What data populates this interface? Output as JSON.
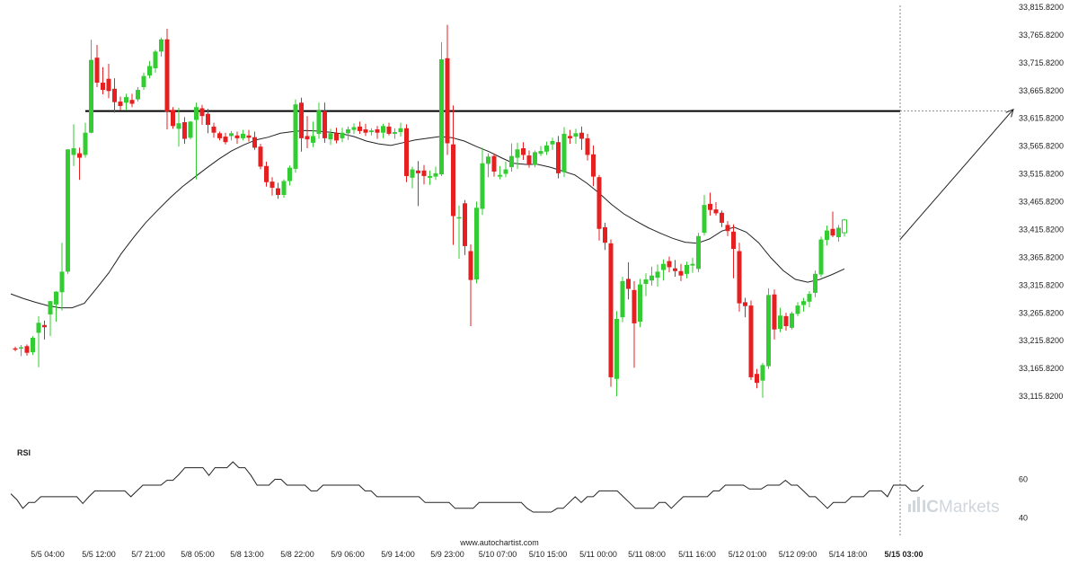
{
  "chart_data": [
    {
      "type": "candlestick",
      "title": "",
      "ylim": [
        33065.82,
        33815.82
      ],
      "y_ticks": [
        "33,815.8200",
        "33,765.8200",
        "33,715.8200",
        "33,665.8200",
        "33,615.8200",
        "33,565.8200",
        "33,515.8200",
        "33,465.8200",
        "33,415.8200",
        "33,365.8200",
        "33,315.8200",
        "33,265.8200",
        "33,215.8200",
        "33,165.8200",
        "33,115.8200"
      ],
      "x_ticks": [
        "5/5 04:00",
        "5/5 12:00",
        "5/7 21:00",
        "5/8 05:00",
        "5/8 13:00",
        "5/8 22:00",
        "5/9 06:00",
        "5/9 14:00",
        "5/9 23:00",
        "5/10 07:00",
        "5/10 15:00",
        "5/11 00:00",
        "5/11 08:00",
        "5/11 16:00",
        "5/12 01:00",
        "5/12 09:00",
        "5/14 18:00",
        "5/15 03:00"
      ],
      "highlighted_x_tick": "5/15 03:00",
      "colors": {
        "up": "#33cc33",
        "down": "#e62020",
        "moving_average": "#222222",
        "resistance": "#000000",
        "projection": "#222222"
      },
      "resistance_level": 33629,
      "moving_average": [
        33300,
        33292,
        33285,
        33279,
        33275,
        33275,
        33283,
        33310,
        33338,
        33372,
        33401,
        33428,
        33451,
        33473,
        33493,
        33510,
        33527,
        33543,
        33557,
        33568,
        33577,
        33582,
        33589,
        33592,
        33594,
        33593,
        33591,
        33588,
        33583,
        33575,
        33570,
        33567,
        33572,
        33577,
        33580,
        33583,
        33581,
        33575,
        33565,
        33556,
        33545,
        33535,
        33533,
        33533,
        33528,
        33521,
        33514,
        33499,
        33481,
        33461,
        33444,
        33431,
        33419,
        33409,
        33400,
        33393,
        33391,
        33399,
        33413,
        33420,
        33411,
        33392,
        33365,
        33342,
        33326,
        33321,
        33326,
        33335,
        33345
      ],
      "candles": [
        {
          "o": 33202,
          "h": 33205,
          "l": 33197,
          "c": 33200
        },
        {
          "o": 33203,
          "h": 33208,
          "l": 33188,
          "c": 33204
        },
        {
          "o": 33206,
          "h": 33209,
          "l": 33189,
          "c": 33194
        },
        {
          "o": 33195,
          "h": 33224,
          "l": 33190,
          "c": 33221
        },
        {
          "o": 33230,
          "h": 33260,
          "l": 33168,
          "c": 33248
        },
        {
          "o": 33244,
          "h": 33252,
          "l": 33218,
          "c": 33240
        },
        {
          "o": 33263,
          "h": 33287,
          "l": 33224,
          "c": 33287
        },
        {
          "o": 33281,
          "h": 33305,
          "l": 33250,
          "c": 33304
        },
        {
          "o": 33303,
          "h": 33392,
          "l": 33270,
          "c": 33340
        },
        {
          "o": 33340,
          "h": 33560,
          "l": 33336,
          "c": 33560
        },
        {
          "o": 33550,
          "h": 33605,
          "l": 33530,
          "c": 33562
        },
        {
          "o": 33553,
          "h": 33563,
          "l": 33505,
          "c": 33545
        },
        {
          "o": 33550,
          "h": 33608,
          "l": 33545,
          "c": 33590
        },
        {
          "o": 33590,
          "h": 33757,
          "l": 33589,
          "c": 33721
        },
        {
          "o": 33725,
          "h": 33748,
          "l": 33672,
          "c": 33680
        },
        {
          "o": 33680,
          "h": 33708,
          "l": 33659,
          "c": 33667
        },
        {
          "o": 33687,
          "h": 33714,
          "l": 33652,
          "c": 33665
        },
        {
          "o": 33669,
          "h": 33688,
          "l": 33626,
          "c": 33645
        },
        {
          "o": 33646,
          "h": 33655,
          "l": 33630,
          "c": 33638
        },
        {
          "o": 33644,
          "h": 33660,
          "l": 33630,
          "c": 33654
        },
        {
          "o": 33649,
          "h": 33660,
          "l": 33636,
          "c": 33642
        },
        {
          "o": 33650,
          "h": 33672,
          "l": 33646,
          "c": 33667
        },
        {
          "o": 33672,
          "h": 33698,
          "l": 33667,
          "c": 33692
        },
        {
          "o": 33693,
          "h": 33719,
          "l": 33688,
          "c": 33710
        },
        {
          "o": 33706,
          "h": 33739,
          "l": 33698,
          "c": 33736
        },
        {
          "o": 33736,
          "h": 33761,
          "l": 33727,
          "c": 33758
        },
        {
          "o": 33758,
          "h": 33777,
          "l": 33596,
          "c": 33628
        },
        {
          "o": 33631,
          "h": 33636,
          "l": 33597,
          "c": 33602
        },
        {
          "o": 33597,
          "h": 33635,
          "l": 33565,
          "c": 33607
        },
        {
          "o": 33609,
          "h": 33618,
          "l": 33570,
          "c": 33579
        },
        {
          "o": 33581,
          "h": 33611,
          "l": 33578,
          "c": 33610
        },
        {
          "o": 33613,
          "h": 33644,
          "l": 33506,
          "c": 33636
        },
        {
          "o": 33634,
          "h": 33640,
          "l": 33604,
          "c": 33620
        },
        {
          "o": 33624,
          "h": 33633,
          "l": 33589,
          "c": 33604
        },
        {
          "o": 33601,
          "h": 33608,
          "l": 33581,
          "c": 33590
        },
        {
          "o": 33589,
          "h": 33592,
          "l": 33576,
          "c": 33580
        },
        {
          "o": 33583,
          "h": 33590,
          "l": 33569,
          "c": 33573
        },
        {
          "o": 33584,
          "h": 33593,
          "l": 33576,
          "c": 33589
        },
        {
          "o": 33585,
          "h": 33592,
          "l": 33570,
          "c": 33580
        },
        {
          "o": 33580,
          "h": 33595,
          "l": 33576,
          "c": 33588
        },
        {
          "o": 33585,
          "h": 33595,
          "l": 33574,
          "c": 33581
        },
        {
          "o": 33582,
          "h": 33592,
          "l": 33559,
          "c": 33563
        },
        {
          "o": 33565,
          "h": 33570,
          "l": 33524,
          "c": 33529
        },
        {
          "o": 33530,
          "h": 33538,
          "l": 33493,
          "c": 33501
        },
        {
          "o": 33502,
          "h": 33510,
          "l": 33477,
          "c": 33491
        },
        {
          "o": 33490,
          "h": 33500,
          "l": 33471,
          "c": 33478
        },
        {
          "o": 33478,
          "h": 33506,
          "l": 33473,
          "c": 33503
        },
        {
          "o": 33503,
          "h": 33531,
          "l": 33495,
          "c": 33527
        },
        {
          "o": 33525,
          "h": 33650,
          "l": 33518,
          "c": 33641
        },
        {
          "o": 33644,
          "h": 33653,
          "l": 33556,
          "c": 33580
        },
        {
          "o": 33584,
          "h": 33620,
          "l": 33562,
          "c": 33578
        },
        {
          "o": 33572,
          "h": 33610,
          "l": 33564,
          "c": 33584
        },
        {
          "o": 33588,
          "h": 33644,
          "l": 33579,
          "c": 33630
        },
        {
          "o": 33629,
          "h": 33644,
          "l": 33572,
          "c": 33580
        },
        {
          "o": 33578,
          "h": 33597,
          "l": 33568,
          "c": 33589
        },
        {
          "o": 33589,
          "h": 33599,
          "l": 33571,
          "c": 33576
        },
        {
          "o": 33580,
          "h": 33599,
          "l": 33573,
          "c": 33590
        },
        {
          "o": 33589,
          "h": 33601,
          "l": 33577,
          "c": 33596
        },
        {
          "o": 33595,
          "h": 33607,
          "l": 33588,
          "c": 33600
        },
        {
          "o": 33601,
          "h": 33610,
          "l": 33588,
          "c": 33593
        },
        {
          "o": 33596,
          "h": 33606,
          "l": 33584,
          "c": 33590
        },
        {
          "o": 33591,
          "h": 33598,
          "l": 33585,
          "c": 33594
        },
        {
          "o": 33596,
          "h": 33602,
          "l": 33579,
          "c": 33590
        },
        {
          "o": 33590,
          "h": 33606,
          "l": 33580,
          "c": 33602
        },
        {
          "o": 33601,
          "h": 33608,
          "l": 33585,
          "c": 33588
        },
        {
          "o": 33588,
          "h": 33598,
          "l": 33579,
          "c": 33591
        },
        {
          "o": 33591,
          "h": 33608,
          "l": 33583,
          "c": 33598
        },
        {
          "o": 33598,
          "h": 33605,
          "l": 33501,
          "c": 33512
        },
        {
          "o": 33509,
          "h": 33529,
          "l": 33490,
          "c": 33524
        },
        {
          "o": 33522,
          "h": 33539,
          "l": 33458,
          "c": 33517
        },
        {
          "o": 33522,
          "h": 33532,
          "l": 33497,
          "c": 33512
        },
        {
          "o": 33509,
          "h": 33522,
          "l": 33496,
          "c": 33512
        },
        {
          "o": 33511,
          "h": 33529,
          "l": 33505,
          "c": 33517
        },
        {
          "o": 33515,
          "h": 33753,
          "l": 33512,
          "c": 33722
        },
        {
          "o": 33724,
          "h": 33784,
          "l": 33550,
          "c": 33571
        },
        {
          "o": 33569,
          "h": 33639,
          "l": 33388,
          "c": 33440
        },
        {
          "o": 33437,
          "h": 33459,
          "l": 33363,
          "c": 33438
        },
        {
          "o": 33463,
          "h": 33469,
          "l": 33370,
          "c": 33386
        },
        {
          "o": 33377,
          "h": 33389,
          "l": 33242,
          "c": 33325
        },
        {
          "o": 33326,
          "h": 33466,
          "l": 33319,
          "c": 33455
        },
        {
          "o": 33453,
          "h": 33563,
          "l": 33442,
          "c": 33535
        },
        {
          "o": 33534,
          "h": 33553,
          "l": 33510,
          "c": 33547
        },
        {
          "o": 33548,
          "h": 33553,
          "l": 33511,
          "c": 33520
        },
        {
          "o": 33511,
          "h": 33530,
          "l": 33506,
          "c": 33514
        },
        {
          "o": 33516,
          "h": 33538,
          "l": 33510,
          "c": 33524
        },
        {
          "o": 33528,
          "h": 33571,
          "l": 33520,
          "c": 33548
        },
        {
          "o": 33545,
          "h": 33572,
          "l": 33525,
          "c": 33560
        },
        {
          "o": 33562,
          "h": 33573,
          "l": 33541,
          "c": 33550
        },
        {
          "o": 33549,
          "h": 33558,
          "l": 33527,
          "c": 33533
        },
        {
          "o": 33532,
          "h": 33558,
          "l": 33528,
          "c": 33555
        },
        {
          "o": 33552,
          "h": 33566,
          "l": 33548,
          "c": 33557
        },
        {
          "o": 33556,
          "h": 33574,
          "l": 33550,
          "c": 33567
        },
        {
          "o": 33569,
          "h": 33581,
          "l": 33559,
          "c": 33575
        },
        {
          "o": 33573,
          "h": 33584,
          "l": 33508,
          "c": 33517
        },
        {
          "o": 33519,
          "h": 33600,
          "l": 33510,
          "c": 33588
        },
        {
          "o": 33584,
          "h": 33595,
          "l": 33570,
          "c": 33580
        },
        {
          "o": 33583,
          "h": 33597,
          "l": 33570,
          "c": 33589
        },
        {
          "o": 33590,
          "h": 33601,
          "l": 33559,
          "c": 33579
        },
        {
          "o": 33580,
          "h": 33588,
          "l": 33540,
          "c": 33550
        },
        {
          "o": 33551,
          "h": 33567,
          "l": 33494,
          "c": 33511
        },
        {
          "o": 33510,
          "h": 33514,
          "l": 33396,
          "c": 33417
        },
        {
          "o": 33420,
          "h": 33428,
          "l": 33379,
          "c": 33392
        },
        {
          "o": 33391,
          "h": 33398,
          "l": 33133,
          "c": 33150
        },
        {
          "o": 33147,
          "h": 33269,
          "l": 33116,
          "c": 33255
        },
        {
          "o": 33258,
          "h": 33331,
          "l": 33249,
          "c": 33323
        },
        {
          "o": 33327,
          "h": 33357,
          "l": 33290,
          "c": 33309
        },
        {
          "o": 33307,
          "h": 33323,
          "l": 33167,
          "c": 33247
        },
        {
          "o": 33250,
          "h": 33327,
          "l": 33240,
          "c": 33317
        },
        {
          "o": 33318,
          "h": 33337,
          "l": 33296,
          "c": 33326
        },
        {
          "o": 33324,
          "h": 33349,
          "l": 33315,
          "c": 33333
        },
        {
          "o": 33329,
          "h": 33353,
          "l": 33313,
          "c": 33340
        },
        {
          "o": 33343,
          "h": 33362,
          "l": 33324,
          "c": 33354
        },
        {
          "o": 33359,
          "h": 33367,
          "l": 33339,
          "c": 33348
        },
        {
          "o": 33346,
          "h": 33361,
          "l": 33331,
          "c": 33341
        },
        {
          "o": 33341,
          "h": 33354,
          "l": 33323,
          "c": 33333
        },
        {
          "o": 33336,
          "h": 33358,
          "l": 33328,
          "c": 33352
        },
        {
          "o": 33351,
          "h": 33365,
          "l": 33338,
          "c": 33354
        },
        {
          "o": 33345,
          "h": 33410,
          "l": 33339,
          "c": 33404
        },
        {
          "o": 33410,
          "h": 33478,
          "l": 33405,
          "c": 33460
        },
        {
          "o": 33462,
          "h": 33482,
          "l": 33441,
          "c": 33451
        },
        {
          "o": 33452,
          "h": 33465,
          "l": 33441,
          "c": 33445
        },
        {
          "o": 33446,
          "h": 33450,
          "l": 33420,
          "c": 33428
        },
        {
          "o": 33424,
          "h": 33431,
          "l": 33404,
          "c": 33413
        },
        {
          "o": 33412,
          "h": 33425,
          "l": 33328,
          "c": 33381
        },
        {
          "o": 33377,
          "h": 33392,
          "l": 33268,
          "c": 33283
        },
        {
          "o": 33285,
          "h": 33293,
          "l": 33258,
          "c": 33278
        },
        {
          "o": 33279,
          "h": 33288,
          "l": 33145,
          "c": 33150
        },
        {
          "o": 33156,
          "h": 33165,
          "l": 33130,
          "c": 33140
        },
        {
          "o": 33144,
          "h": 33176,
          "l": 33113,
          "c": 33172
        },
        {
          "o": 33170,
          "h": 33310,
          "l": 33165,
          "c": 33298
        },
        {
          "o": 33299,
          "h": 33308,
          "l": 33218,
          "c": 33236
        },
        {
          "o": 33237,
          "h": 33275,
          "l": 33231,
          "c": 33261
        },
        {
          "o": 33260,
          "h": 33266,
          "l": 33234,
          "c": 33242
        },
        {
          "o": 33239,
          "h": 33268,
          "l": 33236,
          "c": 33265
        },
        {
          "o": 33264,
          "h": 33285,
          "l": 33260,
          "c": 33279
        },
        {
          "o": 33280,
          "h": 33293,
          "l": 33268,
          "c": 33287
        },
        {
          "o": 33286,
          "h": 33305,
          "l": 33276,
          "c": 33300
        },
        {
          "o": 33302,
          "h": 33342,
          "l": 33294,
          "c": 33336
        },
        {
          "o": 33335,
          "h": 33403,
          "l": 33330,
          "c": 33398
        },
        {
          "o": 33397,
          "h": 33423,
          "l": 33387,
          "c": 33414
        },
        {
          "o": 33417,
          "h": 33448,
          "l": 33402,
          "c": 33405
        },
        {
          "o": 33402,
          "h": 33424,
          "l": 33394,
          "c": 33419
        },
        {
          "o": 33410,
          "h": 33435,
          "l": 33403,
          "c": 33433
        }
      ],
      "projection": {
        "from": 33398,
        "to": 33632
      }
    },
    {
      "type": "line",
      "title": "RSI",
      "ylim": [
        30,
        70
      ],
      "y_ticks": [
        "60",
        "40"
      ],
      "values": [
        52.5,
        49.5,
        45,
        48,
        48,
        51,
        51,
        51,
        51,
        51,
        51,
        51,
        47.5,
        51,
        54,
        54,
        54,
        54,
        54,
        54,
        51,
        54,
        57,
        57,
        57,
        57,
        59.5,
        59.5,
        62.5,
        66,
        66,
        66,
        66,
        62,
        66,
        66,
        66,
        69,
        66,
        66,
        62,
        57,
        57,
        57,
        60,
        60,
        57,
        57,
        57,
        57,
        54,
        54,
        57,
        57,
        57,
        57,
        57,
        57,
        57,
        54,
        54,
        51,
        51,
        51,
        51,
        51,
        51,
        51,
        51,
        48,
        48,
        48,
        48,
        48,
        45,
        45,
        45,
        45,
        48,
        48,
        48,
        48,
        48,
        48,
        48,
        48,
        45,
        43,
        43,
        43,
        43,
        45,
        45,
        48,
        51,
        48,
        51,
        51,
        54,
        54,
        54,
        54,
        51,
        48,
        45,
        45,
        45,
        45,
        48,
        48,
        45,
        48,
        51,
        51,
        51,
        51,
        51,
        54,
        54,
        57,
        57,
        57,
        57,
        55,
        55,
        55,
        57,
        57,
        57,
        59.5,
        57,
        57,
        54,
        51,
        51,
        48,
        45,
        48,
        48,
        48,
        51,
        51,
        51,
        54,
        54,
        54,
        51,
        57,
        57,
        57,
        54,
        54,
        57
      ]
    }
  ],
  "watermark": {
    "url": "www.autochartist.com"
  },
  "brand": {
    "part1": "IC",
    "part2": "Markets"
  }
}
